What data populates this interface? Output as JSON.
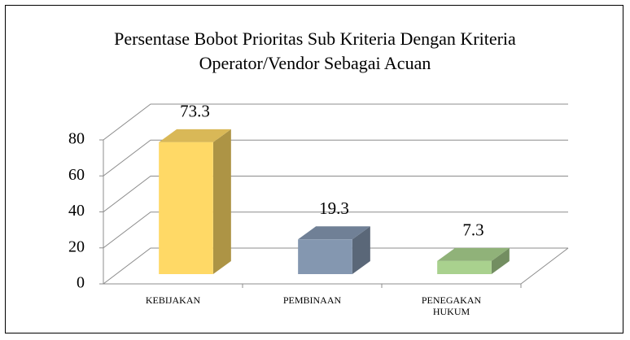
{
  "chart_data": {
    "type": "bar3d",
    "title": "Persentase Bobot Prioritas Sub Kriteria Dengan Kriteria Operator/Vendor Sebagai Acuan",
    "categories": [
      "KEBIJAKAN",
      "PEMBINAAN",
      "PENEGAKAN HUKUM"
    ],
    "values": [
      73.3,
      19.3,
      7.3
    ],
    "colors": [
      "#ffd966",
      "#8497b0",
      "#a9d18e"
    ],
    "ylim": [
      0,
      80
    ],
    "yticks": [
      0,
      20,
      40,
      60,
      80
    ],
    "grid": true
  }
}
